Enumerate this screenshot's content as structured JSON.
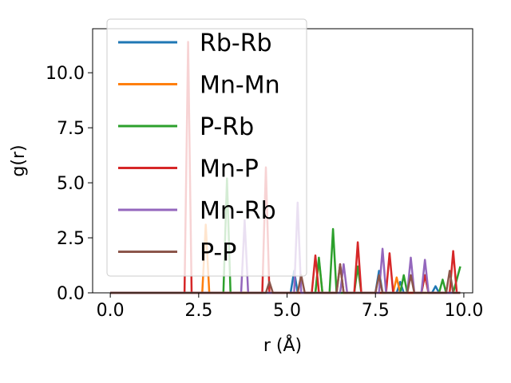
{
  "chart_data": {
    "type": "line",
    "xlabel": "r (Å)",
    "ylabel": "g(r)",
    "xlim": [
      -0.5,
      10.25
    ],
    "ylim": [
      0,
      12.0
    ],
    "x_ticks": [
      "0.0",
      "2.5",
      "5.0",
      "7.5",
      "10.0"
    ],
    "x_tick_values": [
      0,
      2.5,
      5,
      7.5,
      10
    ],
    "y_ticks": [
      "0.0",
      "2.5",
      "5.0",
      "7.5",
      "10.0"
    ],
    "y_tick_values": [
      0,
      2.5,
      5,
      7.5,
      10
    ],
    "grid": false,
    "legend_position": "top-left",
    "series": [
      {
        "name": "Rb-Rb",
        "color": "#1f77b4",
        "points": [
          [
            0,
            0
          ],
          [
            5.1,
            0
          ],
          [
            5.2,
            1.0
          ],
          [
            5.3,
            0
          ],
          [
            7.5,
            0
          ],
          [
            7.6,
            1.0
          ],
          [
            7.7,
            0
          ],
          [
            8.1,
            0
          ],
          [
            8.2,
            0.5
          ],
          [
            8.3,
            0
          ],
          [
            9.1,
            0
          ],
          [
            9.2,
            0.3
          ],
          [
            9.3,
            0
          ],
          [
            9.9,
            0
          ]
        ]
      },
      {
        "name": "Mn-Mn",
        "color": "#ff7f0e",
        "points": [
          [
            0,
            0
          ],
          [
            2.6,
            0
          ],
          [
            2.7,
            3.1
          ],
          [
            2.8,
            0
          ],
          [
            5.8,
            0
          ],
          [
            5.9,
            1.5
          ],
          [
            6.0,
            0
          ],
          [
            8.0,
            0
          ],
          [
            8.1,
            0.7
          ],
          [
            8.2,
            0
          ],
          [
            9.9,
            0
          ]
        ]
      },
      {
        "name": "P-Rb",
        "color": "#2ca02c",
        "points": [
          [
            0,
            0
          ],
          [
            3.2,
            0
          ],
          [
            3.3,
            5.2
          ],
          [
            3.4,
            0
          ],
          [
            5.8,
            0
          ],
          [
            5.9,
            1.6
          ],
          [
            6.0,
            0
          ],
          [
            6.2,
            0
          ],
          [
            6.3,
            2.9
          ],
          [
            6.4,
            0
          ],
          [
            6.9,
            0
          ],
          [
            7.0,
            1.2
          ],
          [
            7.1,
            0
          ],
          [
            8.2,
            0
          ],
          [
            8.3,
            0.8
          ],
          [
            8.4,
            0
          ],
          [
            8.8,
            0
          ],
          [
            8.9,
            0.8
          ],
          [
            9.0,
            0
          ],
          [
            9.3,
            0
          ],
          [
            9.4,
            0.6
          ],
          [
            9.5,
            0
          ],
          [
            9.7,
            0
          ],
          [
            9.9,
            1.2
          ]
        ]
      },
      {
        "name": "Mn-P",
        "color": "#d62728",
        "points": [
          [
            0,
            0
          ],
          [
            2.1,
            0
          ],
          [
            2.2,
            11.4
          ],
          [
            2.3,
            0
          ],
          [
            4.3,
            0
          ],
          [
            4.4,
            5.7
          ],
          [
            4.5,
            0
          ],
          [
            5.7,
            0
          ],
          [
            5.8,
            1.7
          ],
          [
            5.9,
            0
          ],
          [
            6.4,
            0
          ],
          [
            6.5,
            1.3
          ],
          [
            6.6,
            0
          ],
          [
            6.9,
            0
          ],
          [
            7.0,
            2.3
          ],
          [
            7.1,
            0
          ],
          [
            7.8,
            0
          ],
          [
            7.9,
            1.8
          ],
          [
            8.0,
            0
          ],
          [
            8.8,
            0
          ],
          [
            8.9,
            0.8
          ],
          [
            9.0,
            0
          ],
          [
            9.6,
            0
          ],
          [
            9.7,
            1.9
          ],
          [
            9.8,
            0
          ]
        ]
      },
      {
        "name": "Mn-Rb",
        "color": "#9467bd",
        "points": [
          [
            0,
            0
          ],
          [
            3.7,
            0
          ],
          [
            3.8,
            3.3
          ],
          [
            3.9,
            0
          ],
          [
            5.2,
            0
          ],
          [
            5.3,
            4.1
          ],
          [
            5.4,
            0
          ],
          [
            6.5,
            0
          ],
          [
            6.6,
            1.3
          ],
          [
            6.7,
            0
          ],
          [
            7.6,
            0
          ],
          [
            7.7,
            2.0
          ],
          [
            7.8,
            0
          ],
          [
            8.4,
            0
          ],
          [
            8.5,
            1.6
          ],
          [
            8.6,
            0
          ],
          [
            8.8,
            0
          ],
          [
            8.9,
            1.5
          ],
          [
            9.0,
            0
          ],
          [
            9.9,
            0
          ]
        ]
      },
      {
        "name": "P-P",
        "color": "#8c564b",
        "points": [
          [
            0,
            0
          ],
          [
            4.4,
            0
          ],
          [
            4.5,
            0.5
          ],
          [
            4.6,
            0
          ],
          [
            5.3,
            0
          ],
          [
            5.4,
            0.8
          ],
          [
            5.5,
            0
          ],
          [
            6.4,
            0
          ],
          [
            6.5,
            1.3
          ],
          [
            6.6,
            0
          ],
          [
            7.5,
            0
          ],
          [
            7.6,
            0.8
          ],
          [
            7.7,
            0
          ],
          [
            8.4,
            0
          ],
          [
            8.5,
            0.8
          ],
          [
            8.6,
            0
          ],
          [
            9.5,
            0
          ],
          [
            9.6,
            1.0
          ],
          [
            9.7,
            0
          ],
          [
            9.9,
            0
          ]
        ]
      }
    ]
  }
}
